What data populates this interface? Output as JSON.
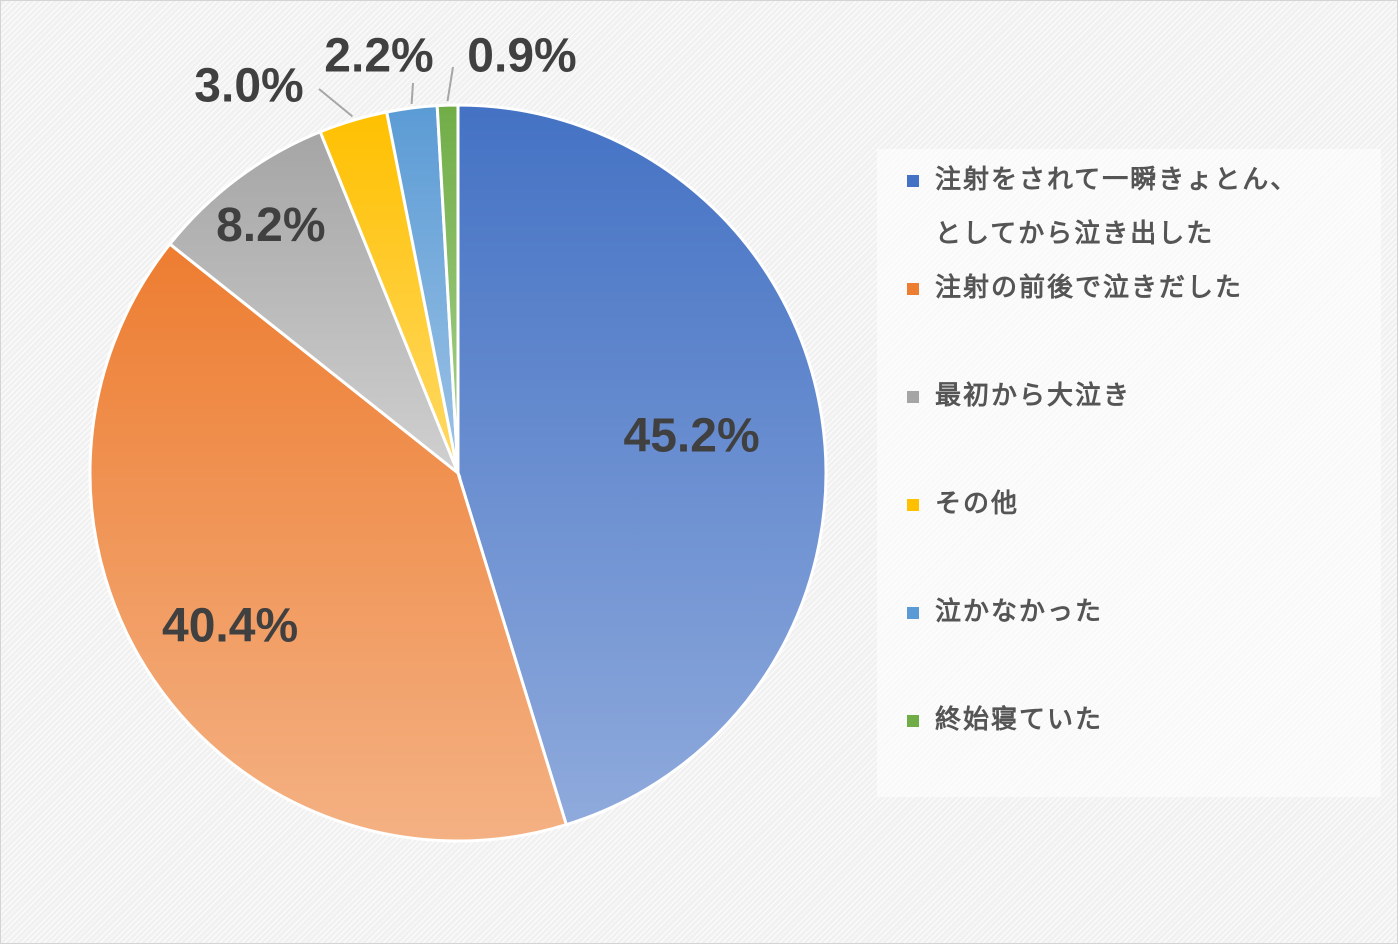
{
  "chart_data": {
    "type": "pie",
    "title": "",
    "unit": "%",
    "start_angle_deg": 0,
    "direction": "clockwise",
    "categories": [
      "注射をされて一瞬きょとん、としてから泣き出した",
      "注射の前後で泣きだした",
      "最初から大泣き",
      "その他",
      "泣かなかった",
      "終始寝ていた"
    ],
    "values": [
      45.2,
      40.4,
      8.2,
      3.0,
      2.2,
      0.9
    ],
    "data_labels": [
      "45.2%",
      "40.4%",
      "8.2%",
      "3.0%",
      "2.2%",
      "0.9%"
    ],
    "colors": [
      "#4472C4",
      "#ED7D31",
      "#A5A5A5",
      "#FFC000",
      "#5B9BD5",
      "#70AD47"
    ],
    "gradient_light_colors": [
      "#8FAADC",
      "#F4B183",
      "#D0D0D0",
      "#FFD966",
      "#9DC3E6",
      "#A9D18E"
    ],
    "legend_position": "right",
    "legend_labels": [
      "注射をされて一瞬きょとん、\nとしてから泣き出した",
      "注射の前後で泣きだした",
      "最初から大泣き",
      "その他",
      "泣かなかった",
      "終始寝ていた"
    ]
  }
}
